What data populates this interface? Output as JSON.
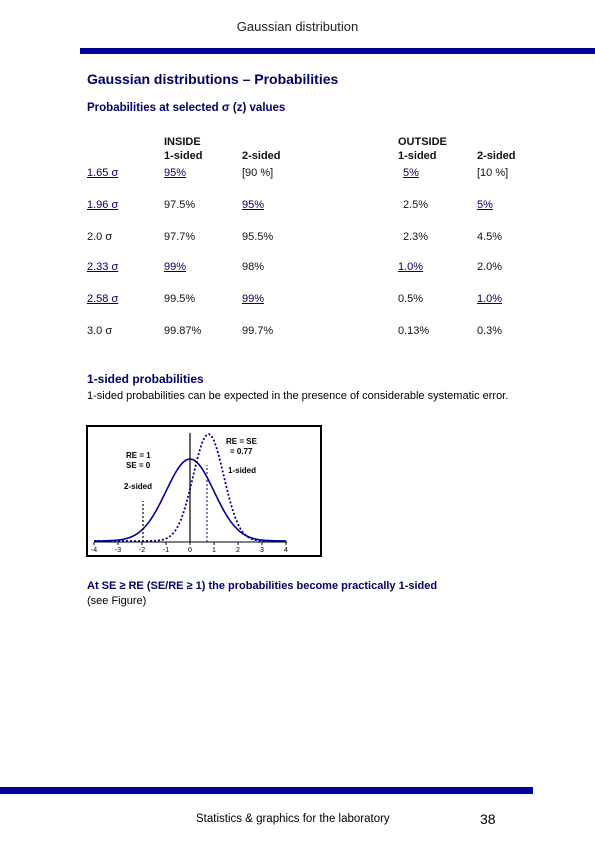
{
  "header": {
    "running_title": "Gaussian distribution"
  },
  "section": {
    "title": "Gaussian distributions – Probabilities",
    "subtitle": "Probabilities at selected σ (z) values"
  },
  "table": {
    "inside_label": "INSIDE",
    "outside_label": "OUTSIDE",
    "col_inside_1": "1-sided",
    "col_inside_2": "2-sided",
    "col_outside_1": "1-sided",
    "col_outside_2": "2-sided",
    "rows": [
      {
        "z": "1.65 σ",
        "in1": "95%",
        "in2": "[90 %]",
        "out1": "5%",
        "out2": "[10 %]"
      },
      {
        "z": "1.96 σ",
        "in1": "97.5%",
        "in2": "95%",
        "out1": "2.5%",
        "out2": "5%"
      },
      {
        "z": "2.0 σ",
        "in1": "97.7%",
        "in2": "95.5%",
        "out1": "2.3%",
        "out2": "4.5%"
      },
      {
        "z": "2.33 σ",
        "in1": "99%",
        "in2": "98%",
        "out1": "1.0%",
        "out2": "2.0%"
      },
      {
        "z": "2.58 σ",
        "in1": "99.5%",
        "in2": "99%",
        "out1": "0.5%",
        "out2": "1.0%"
      },
      {
        "z": "3.0 σ",
        "in1": "99.87%",
        "in2": "99.7%",
        "out1": "0.13%",
        "out2": "0.3%"
      }
    ]
  },
  "one_sided": {
    "title": "1-sided probabilities",
    "text": "1-sided probabilities can be expected in the presence of considerable systematic error."
  },
  "figure": {
    "label_re1": "RE = 1",
    "label_se0": "SE = 0",
    "label_rese": "RE = SE",
    "label_077": "= 0.77",
    "label_1sided": "1-sided",
    "label_2sided": "2-sided",
    "ticks": [
      "-4",
      "-3",
      "-2",
      "-1",
      "0",
      "1",
      "2",
      "3",
      "4"
    ]
  },
  "note": {
    "bold": "At SE ≥ RE (SE/RE ≥ 1) the probabilities become practically 1-sided",
    "normal": "(see Figure)"
  },
  "footer": {
    "text": "Statistics & graphics for the laboratory",
    "page": "38"
  }
}
